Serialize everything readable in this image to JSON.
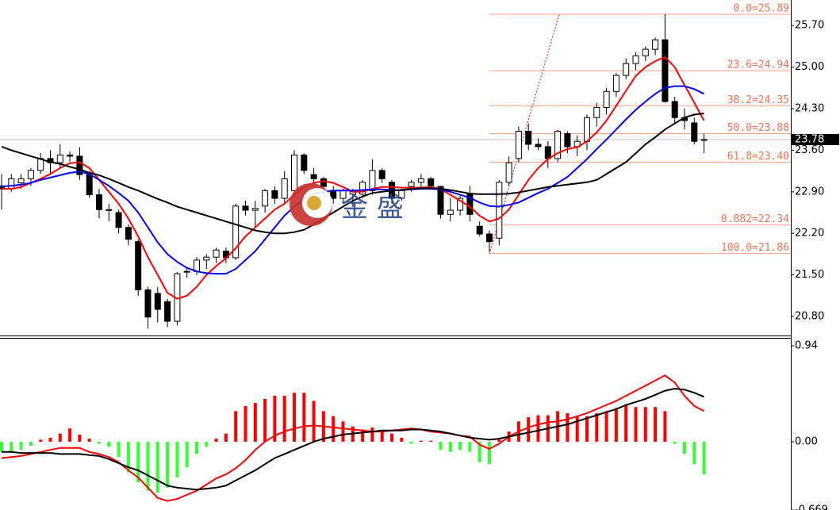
{
  "chart_data": [
    {
      "type": "candlestick",
      "up_color": "#ffffff",
      "down_color": "#000000",
      "open": [
        23.0,
        22.95,
        23.05,
        23.12,
        23.26,
        23.46,
        23.39,
        23.52,
        23.5,
        23.19,
        22.85,
        22.6,
        22.55,
        22.3,
        22.06,
        21.25,
        21.19,
        21.05,
        20.72,
        21.55,
        21.56,
        21.75,
        21.8,
        21.9,
        21.79,
        22.66,
        22.59,
        22.66,
        22.92,
        22.79,
        22.92,
        23.52,
        23.19,
        23.12,
        22.92,
        22.79,
        22.86,
        22.86,
        22.92,
        23.26,
        23.06,
        22.79,
        22.99,
        23.06,
        23.12,
        22.99,
        22.52,
        22.59,
        22.86,
        22.32,
        22.19,
        22.12,
        23.06,
        23.46,
        23.92,
        23.7,
        23.66,
        23.46,
        23.88,
        23.66,
        23.75,
        24.15,
        24.32,
        24.59,
        24.86,
        25.06,
        25.19,
        25.3,
        25.46,
        24.42,
        24.15,
        24.06,
        23.78
      ],
      "high": [
        23.2,
        23.2,
        23.2,
        23.3,
        23.55,
        23.6,
        23.7,
        23.58,
        23.65,
        23.25,
        22.95,
        22.7,
        22.6,
        22.35,
        22.1,
        21.3,
        21.3,
        21.1,
        21.55,
        21.62,
        21.8,
        21.85,
        21.96,
        21.96,
        22.7,
        22.75,
        22.75,
        22.95,
        22.99,
        23.25,
        23.6,
        23.55,
        23.3,
        23.15,
        23.0,
        22.95,
        22.95,
        23.1,
        23.45,
        23.3,
        23.1,
        22.95,
        23.1,
        23.2,
        23.15,
        23.0,
        22.8,
        22.85,
        23.0,
        22.4,
        22.25,
        23.1,
        23.5,
        24.0,
        24.05,
        23.8,
        23.75,
        23.95,
        23.92,
        23.85,
        24.2,
        24.4,
        24.65,
        24.9,
        25.15,
        25.25,
        25.35,
        25.5,
        25.89,
        24.5,
        24.3,
        24.15,
        23.88
      ],
      "low": [
        22.6,
        22.9,
        22.95,
        23.0,
        23.2,
        23.2,
        23.3,
        23.4,
        23.1,
        22.8,
        22.45,
        22.4,
        22.2,
        22.0,
        21.15,
        20.6,
        20.7,
        20.62,
        20.65,
        21.45,
        21.5,
        21.6,
        21.7,
        21.7,
        21.75,
        22.5,
        22.3,
        22.55,
        22.7,
        22.7,
        22.85,
        23.2,
        22.95,
        22.85,
        22.7,
        22.7,
        22.65,
        22.8,
        22.85,
        23.05,
        22.7,
        22.75,
        22.9,
        22.95,
        22.95,
        22.45,
        22.4,
        22.5,
        22.4,
        22.15,
        21.88,
        22.0,
        23.0,
        23.4,
        23.6,
        23.6,
        23.3,
        23.4,
        23.55,
        23.5,
        23.6,
        24.0,
        24.2,
        24.5,
        24.8,
        24.95,
        25.1,
        25.2,
        24.4,
        24.05,
        23.95,
        23.7,
        23.55
      ],
      "close": [
        22.95,
        23.12,
        23.12,
        23.26,
        23.46,
        23.39,
        23.52,
        23.5,
        23.19,
        22.85,
        22.6,
        22.59,
        22.3,
        22.1,
        21.25,
        20.79,
        20.92,
        20.72,
        21.52,
        21.56,
        21.75,
        21.8,
        21.92,
        21.79,
        22.66,
        22.59,
        22.62,
        22.92,
        22.79,
        23.12,
        23.52,
        23.26,
        23.12,
        22.99,
        22.79,
        22.92,
        22.9,
        23.06,
        23.26,
        23.12,
        22.79,
        22.92,
        23.06,
        23.12,
        23.0,
        22.52,
        22.59,
        22.79,
        22.52,
        22.19,
        22.06,
        23.06,
        23.39,
        23.92,
        23.7,
        23.66,
        23.46,
        23.92,
        23.66,
        23.75,
        24.15,
        24.32,
        24.59,
        24.86,
        25.06,
        25.19,
        25.3,
        25.46,
        24.42,
        24.15,
        24.1,
        23.75,
        23.78
      ],
      "lines": [
        {
          "color": "#ff0000",
          "values": [
            22.95,
            22.95,
            22.98,
            23.05,
            23.12,
            23.2,
            23.3,
            23.38,
            23.4,
            23.3,
            23.1,
            22.9,
            22.7,
            22.45,
            22.15,
            21.8,
            21.5,
            21.2,
            21.1,
            21.15,
            21.3,
            21.5,
            21.65,
            21.78,
            21.95,
            22.15,
            22.3,
            22.45,
            22.6,
            22.7,
            22.85,
            22.98,
            23.05,
            23.08,
            23.05,
            22.98,
            22.9,
            22.9,
            22.95,
            22.98,
            22.98,
            22.97,
            22.97,
            22.97,
            22.98,
            22.95,
            22.85,
            22.75,
            22.65,
            22.5,
            22.4,
            22.45,
            22.6,
            22.85,
            23.1,
            23.3,
            23.45,
            23.55,
            23.62,
            23.65,
            23.75,
            23.9,
            24.1,
            24.35,
            24.6,
            24.85,
            25.0,
            25.1,
            25.17,
            25.0,
            24.7,
            24.4,
            24.1
          ]
        },
        {
          "color": "#0000ff",
          "values": [
            22.99,
            23.0,
            23.02,
            23.05,
            23.1,
            23.14,
            23.18,
            23.22,
            23.24,
            23.2,
            23.1,
            23.0,
            22.88,
            22.75,
            22.55,
            22.3,
            22.05,
            21.85,
            21.72,
            21.62,
            21.56,
            21.53,
            21.52,
            21.52,
            21.6,
            21.75,
            21.9,
            22.1,
            22.3,
            22.5,
            22.65,
            22.78,
            22.86,
            22.9,
            22.92,
            22.92,
            22.92,
            22.93,
            22.94,
            22.94,
            22.93,
            22.93,
            22.94,
            22.95,
            22.95,
            22.94,
            22.9,
            22.85,
            22.8,
            22.72,
            22.66,
            22.65,
            22.68,
            22.72,
            22.8,
            22.88,
            22.95,
            23.05,
            23.15,
            23.3,
            23.45,
            23.62,
            23.78,
            23.95,
            24.12,
            24.28,
            24.42,
            24.55,
            24.65,
            24.68,
            24.68,
            24.63,
            24.55
          ]
        },
        {
          "color": "#000000",
          "values": [
            23.66,
            23.6,
            23.55,
            23.5,
            23.45,
            23.4,
            23.37,
            23.32,
            23.28,
            23.22,
            23.18,
            23.12,
            23.05,
            22.98,
            22.92,
            22.85,
            22.78,
            22.72,
            22.65,
            22.6,
            22.55,
            22.5,
            22.45,
            22.4,
            22.35,
            22.3,
            22.25,
            22.22,
            22.2,
            22.2,
            22.22,
            22.26,
            22.35,
            22.45,
            22.55,
            22.65,
            22.75,
            22.82,
            22.88,
            22.9,
            22.92,
            22.93,
            22.95,
            22.96,
            22.96,
            22.95,
            22.93,
            22.9,
            22.87,
            22.86,
            22.86,
            22.86,
            22.87,
            22.89,
            22.92,
            22.95,
            22.98,
            23.0,
            23.02,
            23.04,
            23.06,
            23.1,
            23.2,
            23.3,
            23.4,
            23.55,
            23.7,
            23.82,
            23.95,
            24.05,
            24.15,
            24.2,
            24.22
          ]
        }
      ],
      "ylim": [
        20.48,
        26.13
      ],
      "yticks": [
        {
          "value": 25.7,
          "label": "25.70"
        },
        {
          "value": 25.0,
          "label": "25.00"
        },
        {
          "value": 24.3,
          "label": "24.30"
        },
        {
          "value": 23.6,
          "label": "23.60"
        },
        {
          "value": 22.9,
          "label": "22.90"
        },
        {
          "value": 22.2,
          "label": "22.20"
        },
        {
          "value": 21.5,
          "label": "21.50"
        },
        {
          "value": 20.8,
          "label": "20.80"
        }
      ],
      "fib_levels": [
        {
          "value": 25.89,
          "label": "0.0=25.89"
        },
        {
          "value": 24.94,
          "label": "23.6=24.94"
        },
        {
          "value": 24.35,
          "label": "38.2=24.35"
        },
        {
          "value": 23.88,
          "label": "50.0=23.88"
        },
        {
          "value": 23.4,
          "label": "61.8=23.40"
        },
        {
          "value": 22.34,
          "label": "0.882=22.34"
        },
        {
          "value": 21.86,
          "label": "100.0=21.86"
        }
      ],
      "fib_color": "#f4a080",
      "last_price": 23.78,
      "watermark": "金 盛"
    },
    {
      "type": "macd",
      "pos_color": "#ff0000",
      "neg_color": "#33ff33",
      "values": [
        -0.1,
        -0.1,
        -0.08,
        -0.04,
        0.02,
        0.04,
        0.08,
        0.13,
        0.07,
        0.03,
        -0.02,
        -0.05,
        -0.15,
        -0.3,
        -0.4,
        -0.48,
        -0.5,
        -0.45,
        -0.35,
        -0.25,
        -0.12,
        -0.05,
        0.03,
        0.08,
        0.3,
        0.35,
        0.38,
        0.42,
        0.45,
        0.45,
        0.48,
        0.48,
        0.4,
        0.3,
        0.25,
        0.2,
        0.15,
        0.12,
        0.14,
        0.1,
        0.08,
        0.04,
        -0.02,
        0.01,
        0.01,
        -0.08,
        -0.1,
        -0.08,
        -0.1,
        -0.2,
        -0.22,
        0.02,
        0.1,
        0.2,
        0.24,
        0.26,
        0.26,
        0.3,
        0.28,
        0.25,
        0.25,
        0.28,
        0.3,
        0.33,
        0.36,
        0.34,
        0.34,
        0.34,
        0.3,
        -0.02,
        -0.12,
        -0.22,
        -0.32
      ],
      "lines": [
        {
          "color": "#ff0000",
          "values": [
            -0.16,
            -0.15,
            -0.14,
            -0.12,
            -0.1,
            -0.08,
            -0.06,
            -0.06,
            -0.06,
            -0.1,
            -0.12,
            -0.15,
            -0.2,
            -0.28,
            -0.35,
            -0.45,
            -0.55,
            -0.58,
            -0.56,
            -0.52,
            -0.48,
            -0.42,
            -0.36,
            -0.32,
            -0.26,
            -0.18,
            -0.08,
            0.0,
            0.06,
            0.1,
            0.13,
            0.15,
            0.16,
            0.15,
            0.14,
            0.13,
            0.12,
            0.11,
            0.1,
            0.1,
            0.11,
            0.12,
            0.13,
            0.12,
            0.1,
            0.09,
            0.08,
            0.06,
            0.05,
            -0.03,
            -0.07,
            -0.02,
            0.05,
            0.1,
            0.14,
            0.17,
            0.19,
            0.2,
            0.22,
            0.25,
            0.28,
            0.32,
            0.36,
            0.4,
            0.45,
            0.5,
            0.55,
            0.6,
            0.65,
            0.58,
            0.45,
            0.35,
            0.3
          ]
        },
        {
          "color": "#000000",
          "values": [
            -0.1,
            -0.1,
            -0.11,
            -0.11,
            -0.11,
            -0.11,
            -0.12,
            -0.12,
            -0.12,
            -0.13,
            -0.14,
            -0.17,
            -0.21,
            -0.25,
            -0.28,
            -0.33,
            -0.38,
            -0.43,
            -0.45,
            -0.46,
            -0.47,
            -0.46,
            -0.45,
            -0.43,
            -0.38,
            -0.33,
            -0.28,
            -0.22,
            -0.16,
            -0.12,
            -0.08,
            -0.04,
            0.0,
            0.03,
            0.05,
            0.07,
            0.08,
            0.09,
            0.1,
            0.11,
            0.11,
            0.11,
            0.12,
            0.12,
            0.11,
            0.1,
            0.08,
            0.06,
            0.04,
            0.03,
            0.02,
            0.03,
            0.05,
            0.07,
            0.09,
            0.11,
            0.13,
            0.15,
            0.17,
            0.2,
            0.23,
            0.26,
            0.29,
            0.32,
            0.36,
            0.39,
            0.42,
            0.46,
            0.5,
            0.52,
            0.51,
            0.48,
            0.44
          ]
        }
      ],
      "ylim": [
        -0.669,
        1.01
      ],
      "yticks": [
        0.94,
        {
          "value": 0,
          "label": "0.00"
        },
        -0.669
      ]
    }
  ]
}
